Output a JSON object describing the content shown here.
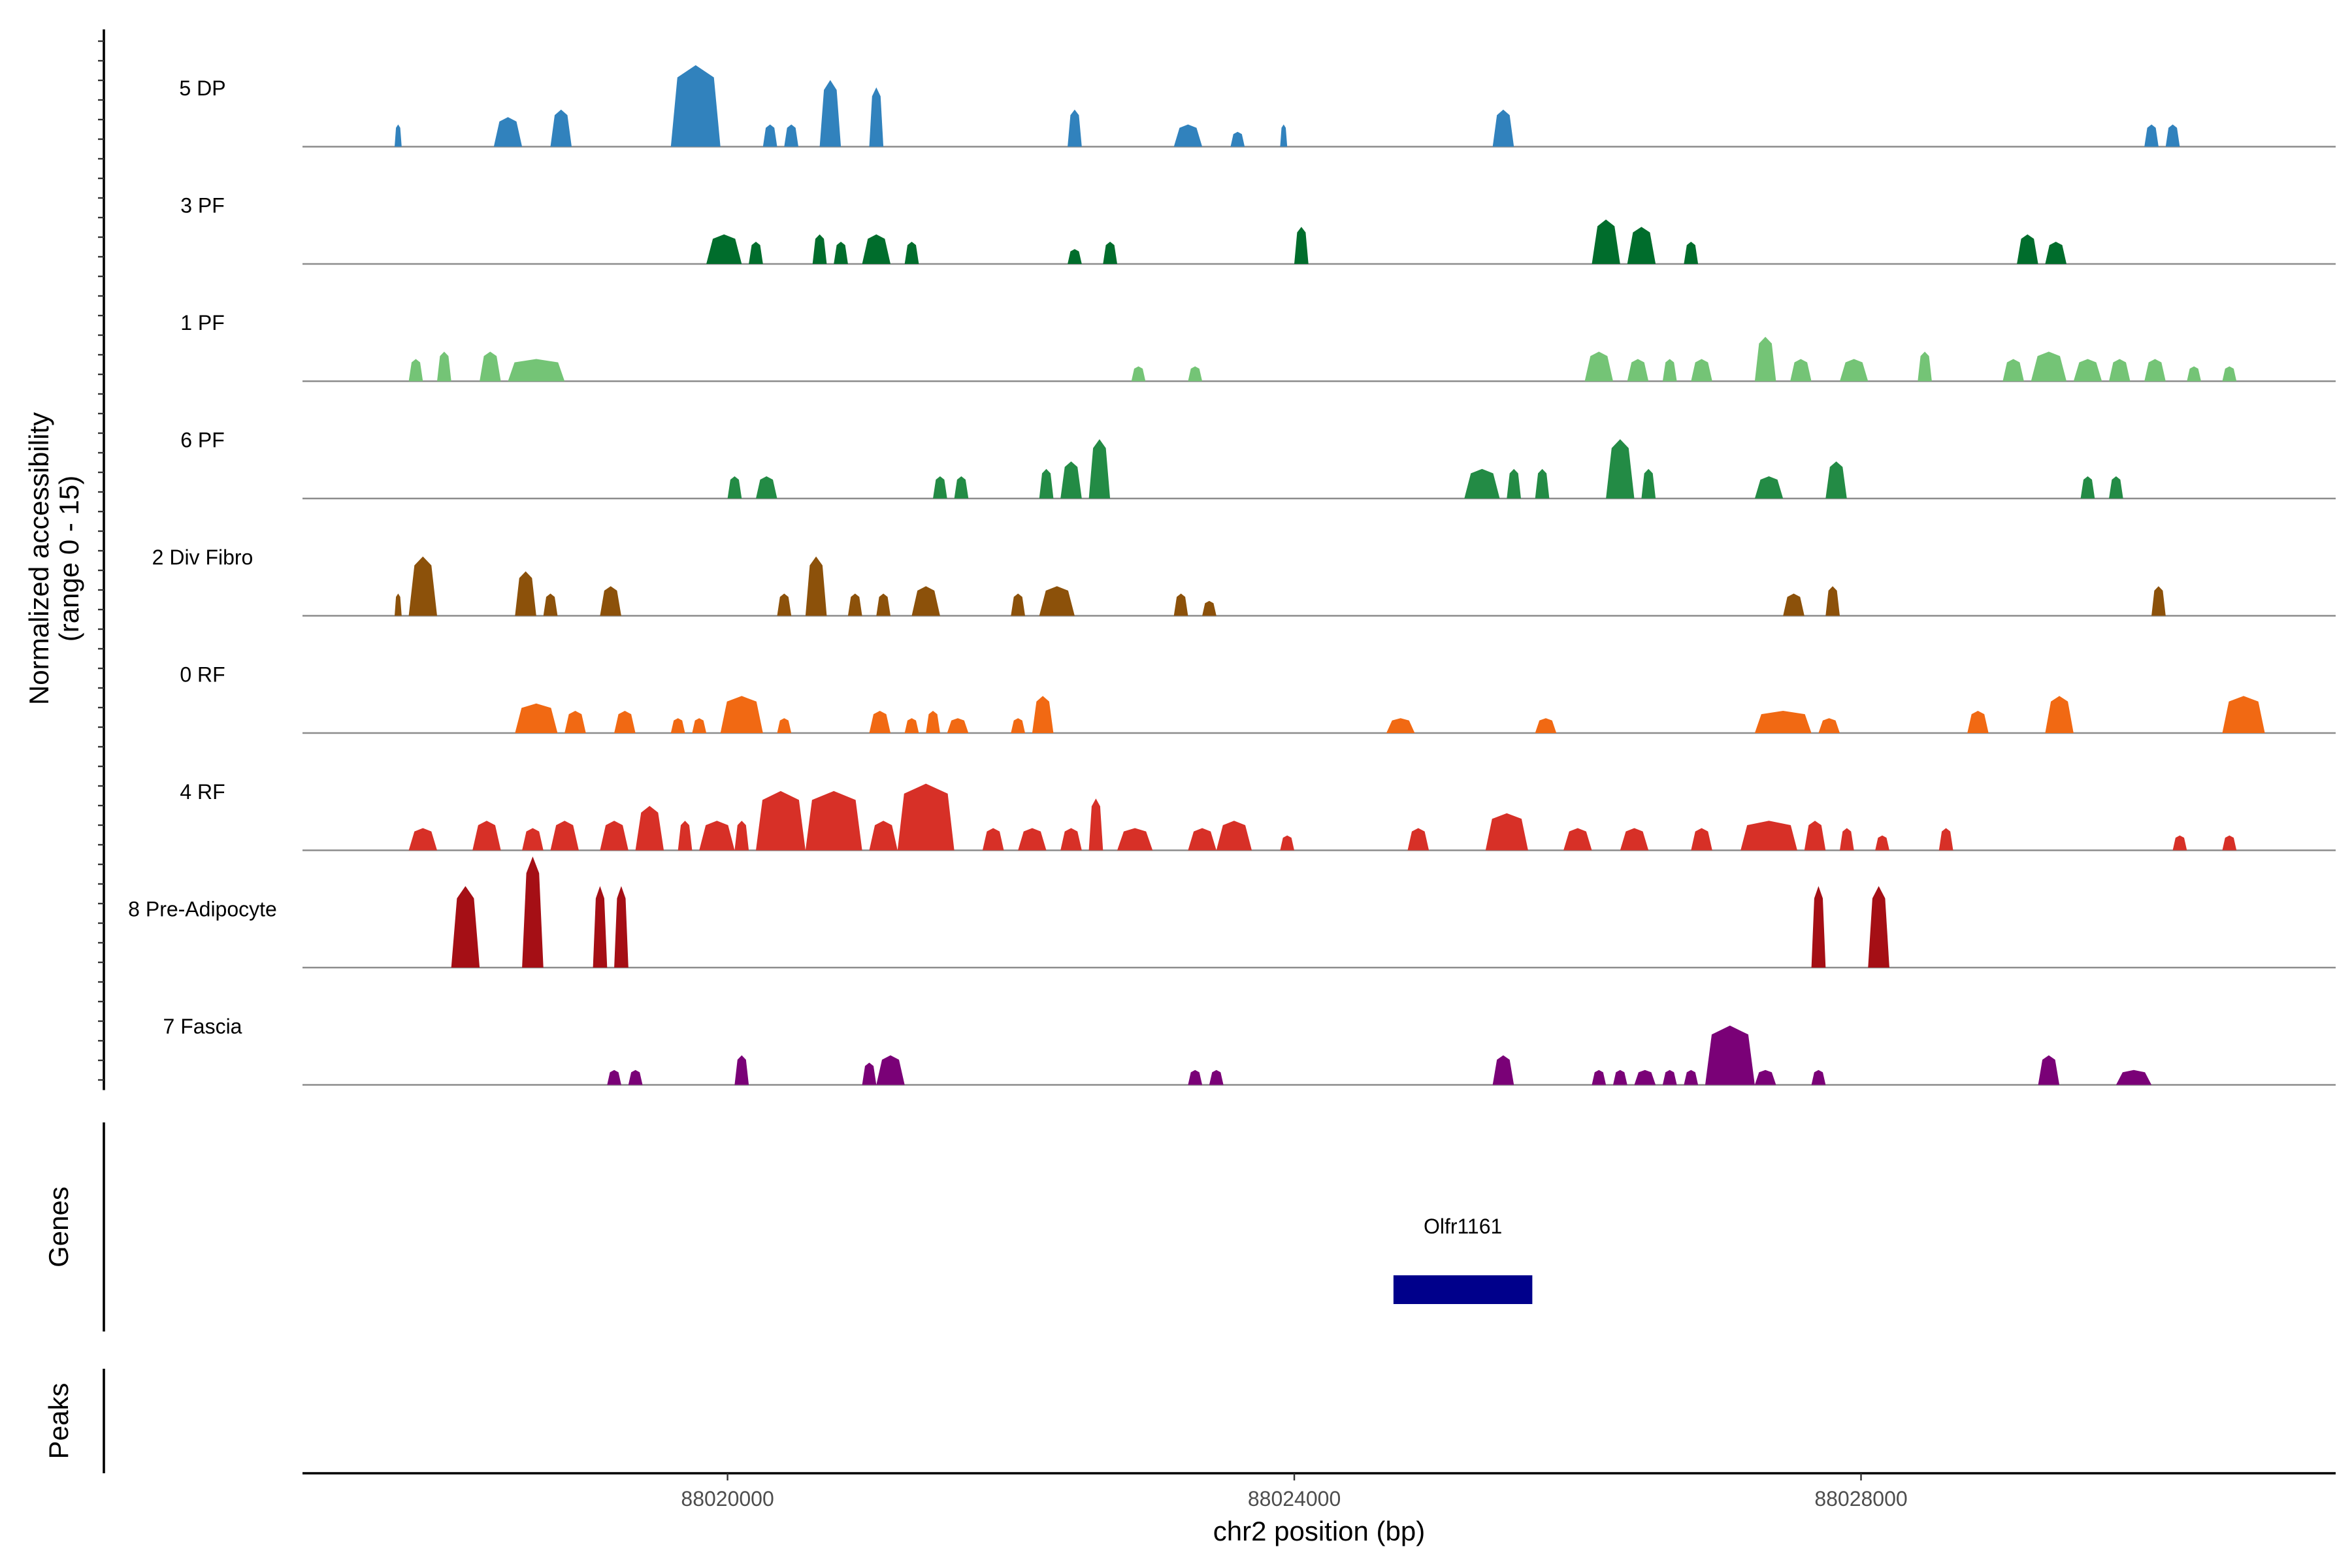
{
  "chart_data": {
    "type": "area",
    "region": "chr2",
    "xlabel": "chr2 position (bp)",
    "ylabel": "Normalized accessibility",
    "ylabel_range": "(range 0 - 15)",
    "ylim": [
      0,
      15
    ],
    "xlim": [
      88017000,
      88031350
    ],
    "x_ticks": [
      "88020000",
      "88024000",
      "88028000"
    ],
    "x_tick_values": [
      88020000,
      88024000,
      88028000
    ],
    "grid": false,
    "legend": "none",
    "series": [
      {
        "name": "5 DP",
        "color": "#3182bd",
        "peaks": [
          [
            88017650,
            88017700,
            3
          ],
          [
            88018350,
            88018550,
            4
          ],
          [
            88018750,
            88018900,
            5
          ],
          [
            88019600,
            88019950,
            11
          ],
          [
            88020250,
            88020350,
            3
          ],
          [
            88020400,
            88020500,
            3
          ],
          [
            88020650,
            88020800,
            9
          ],
          [
            88021000,
            88021100,
            8
          ],
          [
            88022400,
            88022500,
            5
          ],
          [
            88023150,
            88023350,
            3
          ],
          [
            88023550,
            88023650,
            2
          ],
          [
            88023900,
            88023950,
            3
          ],
          [
            88025400,
            88025550,
            5
          ],
          [
            88030000,
            88030100,
            3
          ],
          [
            88030150,
            88030250,
            3
          ]
        ]
      },
      {
        "name": "3 PF",
        "color": "#006d2c",
        "peaks": [
          [
            88019850,
            88020100,
            4
          ],
          [
            88020150,
            88020250,
            3
          ],
          [
            88020600,
            88020700,
            4
          ],
          [
            88020750,
            88020850,
            3
          ],
          [
            88020950,
            88021150,
            4
          ],
          [
            88021250,
            88021350,
            3
          ],
          [
            88022400,
            88022500,
            2
          ],
          [
            88022650,
            88022750,
            3
          ],
          [
            88024000,
            88024100,
            5
          ],
          [
            88026100,
            88026300,
            6
          ],
          [
            88026350,
            88026550,
            5
          ],
          [
            88026750,
            88026850,
            3
          ],
          [
            88029100,
            88029250,
            4
          ],
          [
            88029300,
            88029450,
            3
          ]
        ]
      },
      {
        "name": "1 PF",
        "color": "#74c476",
        "peaks": [
          [
            88017750,
            88017850,
            3
          ],
          [
            88017950,
            88018050,
            4
          ],
          [
            88018250,
            88018400,
            4
          ],
          [
            88018450,
            88018850,
            3
          ],
          [
            88022850,
            88022950,
            2
          ],
          [
            88023250,
            88023350,
            2
          ],
          [
            88026050,
            88026250,
            4
          ],
          [
            88026350,
            88026500,
            3
          ],
          [
            88026600,
            88026700,
            3
          ],
          [
            88026800,
            88026950,
            3
          ],
          [
            88027250,
            88027400,
            6
          ],
          [
            88027500,
            88027650,
            3
          ],
          [
            88027850,
            88028050,
            3
          ],
          [
            88028400,
            88028500,
            4
          ],
          [
            88029000,
            88029150,
            3
          ],
          [
            88029200,
            88029450,
            4
          ],
          [
            88029500,
            88029700,
            3
          ],
          [
            88029750,
            88029900,
            3
          ],
          [
            88030000,
            88030150,
            3
          ],
          [
            88030300,
            88030400,
            2
          ],
          [
            88030550,
            88030650,
            2
          ]
        ]
      },
      {
        "name": "6 PF",
        "color": "#238b45",
        "peaks": [
          [
            88020000,
            88020100,
            3
          ],
          [
            88020200,
            88020350,
            3
          ],
          [
            88021450,
            88021550,
            3
          ],
          [
            88021600,
            88021700,
            3
          ],
          [
            88022200,
            88022300,
            4
          ],
          [
            88022350,
            88022500,
            5
          ],
          [
            88022550,
            88022700,
            8
          ],
          [
            88025200,
            88025450,
            4
          ],
          [
            88025500,
            88025600,
            4
          ],
          [
            88025700,
            88025800,
            4
          ],
          [
            88026200,
            88026400,
            8
          ],
          [
            88026450,
            88026550,
            4
          ],
          [
            88027250,
            88027450,
            3
          ],
          [
            88027750,
            88027900,
            5
          ],
          [
            88029550,
            88029650,
            3
          ],
          [
            88029750,
            88029850,
            3
          ]
        ]
      },
      {
        "name": "2 Div Fibro",
        "color": "#8c510a",
        "peaks": [
          [
            88017650,
            88017700,
            3
          ],
          [
            88017750,
            88017950,
            8
          ],
          [
            88018500,
            88018650,
            6
          ],
          [
            88018700,
            88018800,
            3
          ],
          [
            88019100,
            88019250,
            4
          ],
          [
            88020350,
            88020450,
            3
          ],
          [
            88020550,
            88020700,
            8
          ],
          [
            88020850,
            88020950,
            3
          ],
          [
            88021050,
            88021150,
            3
          ],
          [
            88021300,
            88021500,
            4
          ],
          [
            88022000,
            88022100,
            3
          ],
          [
            88022200,
            88022450,
            4
          ],
          [
            88023150,
            88023250,
            3
          ],
          [
            88023350,
            88023450,
            2
          ],
          [
            88027450,
            88027600,
            3
          ],
          [
            88027750,
            88027850,
            4
          ],
          [
            88030050,
            88030150,
            4
          ]
        ]
      },
      {
        "name": "0 RF",
        "color": "#f16913",
        "peaks": [
          [
            88018500,
            88018800,
            4
          ],
          [
            88018850,
            88019000,
            3
          ],
          [
            88019200,
            88019350,
            3
          ],
          [
            88019600,
            88019700,
            2
          ],
          [
            88019750,
            88019850,
            2
          ],
          [
            88019950,
            88020250,
            5
          ],
          [
            88020350,
            88020450,
            2
          ],
          [
            88021000,
            88021150,
            3
          ],
          [
            88021250,
            88021350,
            2
          ],
          [
            88021400,
            88021500,
            3
          ],
          [
            88021550,
            88021700,
            2
          ],
          [
            88022000,
            88022100,
            2
          ],
          [
            88022150,
            88022300,
            5
          ],
          [
            88024650,
            88024850,
            2
          ],
          [
            88025700,
            88025850,
            2
          ],
          [
            88027250,
            88027650,
            3
          ],
          [
            88027700,
            88027850,
            2
          ],
          [
            88028750,
            88028900,
            3
          ],
          [
            88029300,
            88029500,
            5
          ],
          [
            88030550,
            88030850,
            5
          ]
        ]
      },
      {
        "name": "4 RF",
        "color": "#d73027",
        "peaks": [
          [
            88017750,
            88017950,
            3
          ],
          [
            88018200,
            88018400,
            4
          ],
          [
            88018550,
            88018700,
            3
          ],
          [
            88018750,
            88018950,
            4
          ],
          [
            88019100,
            88019300,
            4
          ],
          [
            88019350,
            88019550,
            6
          ],
          [
            88019650,
            88019750,
            4
          ],
          [
            88019800,
            88020050,
            4
          ],
          [
            88020050,
            88020150,
            4
          ],
          [
            88020200,
            88020550,
            8
          ],
          [
            88020550,
            88020950,
            8
          ],
          [
            88021000,
            88021200,
            4
          ],
          [
            88021200,
            88021600,
            9
          ],
          [
            88021800,
            88021950,
            3
          ],
          [
            88022050,
            88022250,
            3
          ],
          [
            88022350,
            88022500,
            3
          ],
          [
            88022550,
            88022650,
            7
          ],
          [
            88022750,
            88023000,
            3
          ],
          [
            88023250,
            88023450,
            3
          ],
          [
            88023450,
            88023700,
            4
          ],
          [
            88023900,
            88024000,
            2
          ],
          [
            88024800,
            88024950,
            3
          ],
          [
            88025350,
            88025650,
            5
          ],
          [
            88025900,
            88026100,
            3
          ],
          [
            88026300,
            88026500,
            3
          ],
          [
            88026800,
            88026950,
            3
          ],
          [
            88027150,
            88027550,
            4
          ],
          [
            88027600,
            88027750,
            4
          ],
          [
            88027850,
            88027950,
            3
          ],
          [
            88028100,
            88028200,
            2
          ],
          [
            88028550,
            88028650,
            3
          ],
          [
            88030200,
            88030300,
            2
          ],
          [
            88030550,
            88030650,
            2
          ]
        ]
      },
      {
        "name": "8 Pre-Adipocyte",
        "color": "#a50f15",
        "peaks": [
          [
            88018050,
            88018250,
            11
          ],
          [
            88018550,
            88018700,
            15
          ],
          [
            88019050,
            88019150,
            11
          ],
          [
            88019200,
            88019300,
            11
          ],
          [
            88027650,
            88027750,
            11
          ],
          [
            88028050,
            88028200,
            11
          ]
        ]
      },
      {
        "name": "7 Fascia",
        "color": "#7a0177",
        "peaks": [
          [
            88019150,
            88019250,
            2
          ],
          [
            88019300,
            88019400,
            2
          ],
          [
            88020050,
            88020150,
            4
          ],
          [
            88020950,
            88021050,
            3
          ],
          [
            88021050,
            88021250,
            4
          ],
          [
            88023250,
            88023350,
            2
          ],
          [
            88023400,
            88023500,
            2
          ],
          [
            88025400,
            88025550,
            4
          ],
          [
            88026100,
            88026200,
            2
          ],
          [
            88026250,
            88026350,
            2
          ],
          [
            88026400,
            88026550,
            2
          ],
          [
            88026600,
            88026700,
            2
          ],
          [
            88026750,
            88026850,
            2
          ],
          [
            88026900,
            88027250,
            8
          ],
          [
            88027250,
            88027400,
            2
          ],
          [
            88027650,
            88027750,
            2
          ],
          [
            88029250,
            88029400,
            4
          ],
          [
            88029800,
            88030050,
            2
          ]
        ]
      }
    ],
    "genes": [
      {
        "name": "Olfr1161",
        "start": 88024700,
        "end": 88025680,
        "color": "#00008b"
      }
    ],
    "panels": [
      "Genes",
      "Peaks"
    ]
  }
}
